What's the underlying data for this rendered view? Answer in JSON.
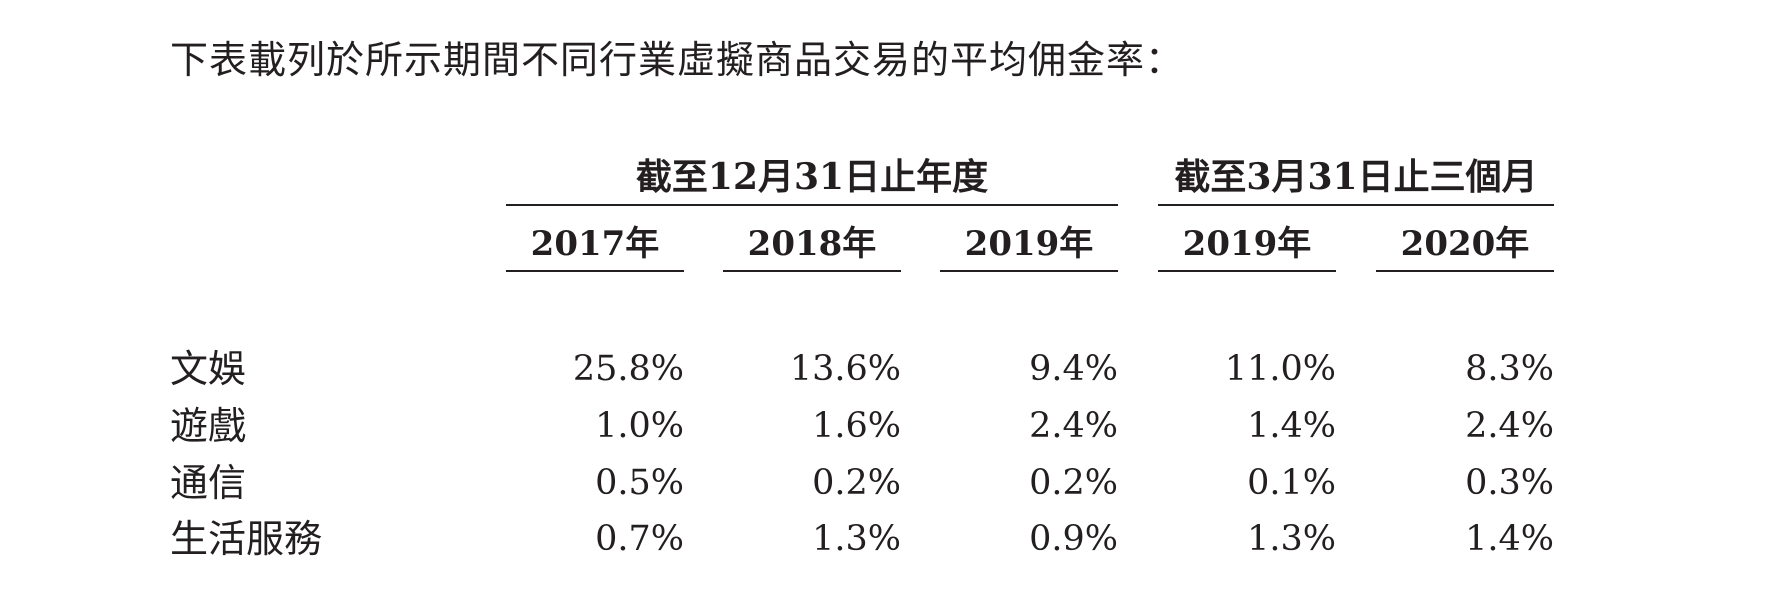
{
  "intro_text": "下表載列於所示期間不同行業虛擬商品交易的平均佣金率：",
  "table": {
    "group_headers": [
      "截至12月31日止年度",
      "截至3月31日止三個月"
    ],
    "columns": [
      "2017年",
      "2018年",
      "2019年",
      "2019年",
      "2020年"
    ],
    "rows": [
      {
        "label": "文娛",
        "values": [
          "25.8%",
          "13.6%",
          "9.4%",
          "11.0%",
          "8.3%"
        ]
      },
      {
        "label": "遊戲",
        "values": [
          "1.0%",
          "1.6%",
          "2.4%",
          "1.4%",
          "2.4%"
        ]
      },
      {
        "label": "通信",
        "values": [
          "0.5%",
          "0.2%",
          "0.2%",
          "0.1%",
          "0.3%"
        ]
      },
      {
        "label": "生活服務",
        "values": [
          "0.7%",
          "1.3%",
          "0.9%",
          "1.3%",
          "1.4%"
        ]
      }
    ]
  }
}
